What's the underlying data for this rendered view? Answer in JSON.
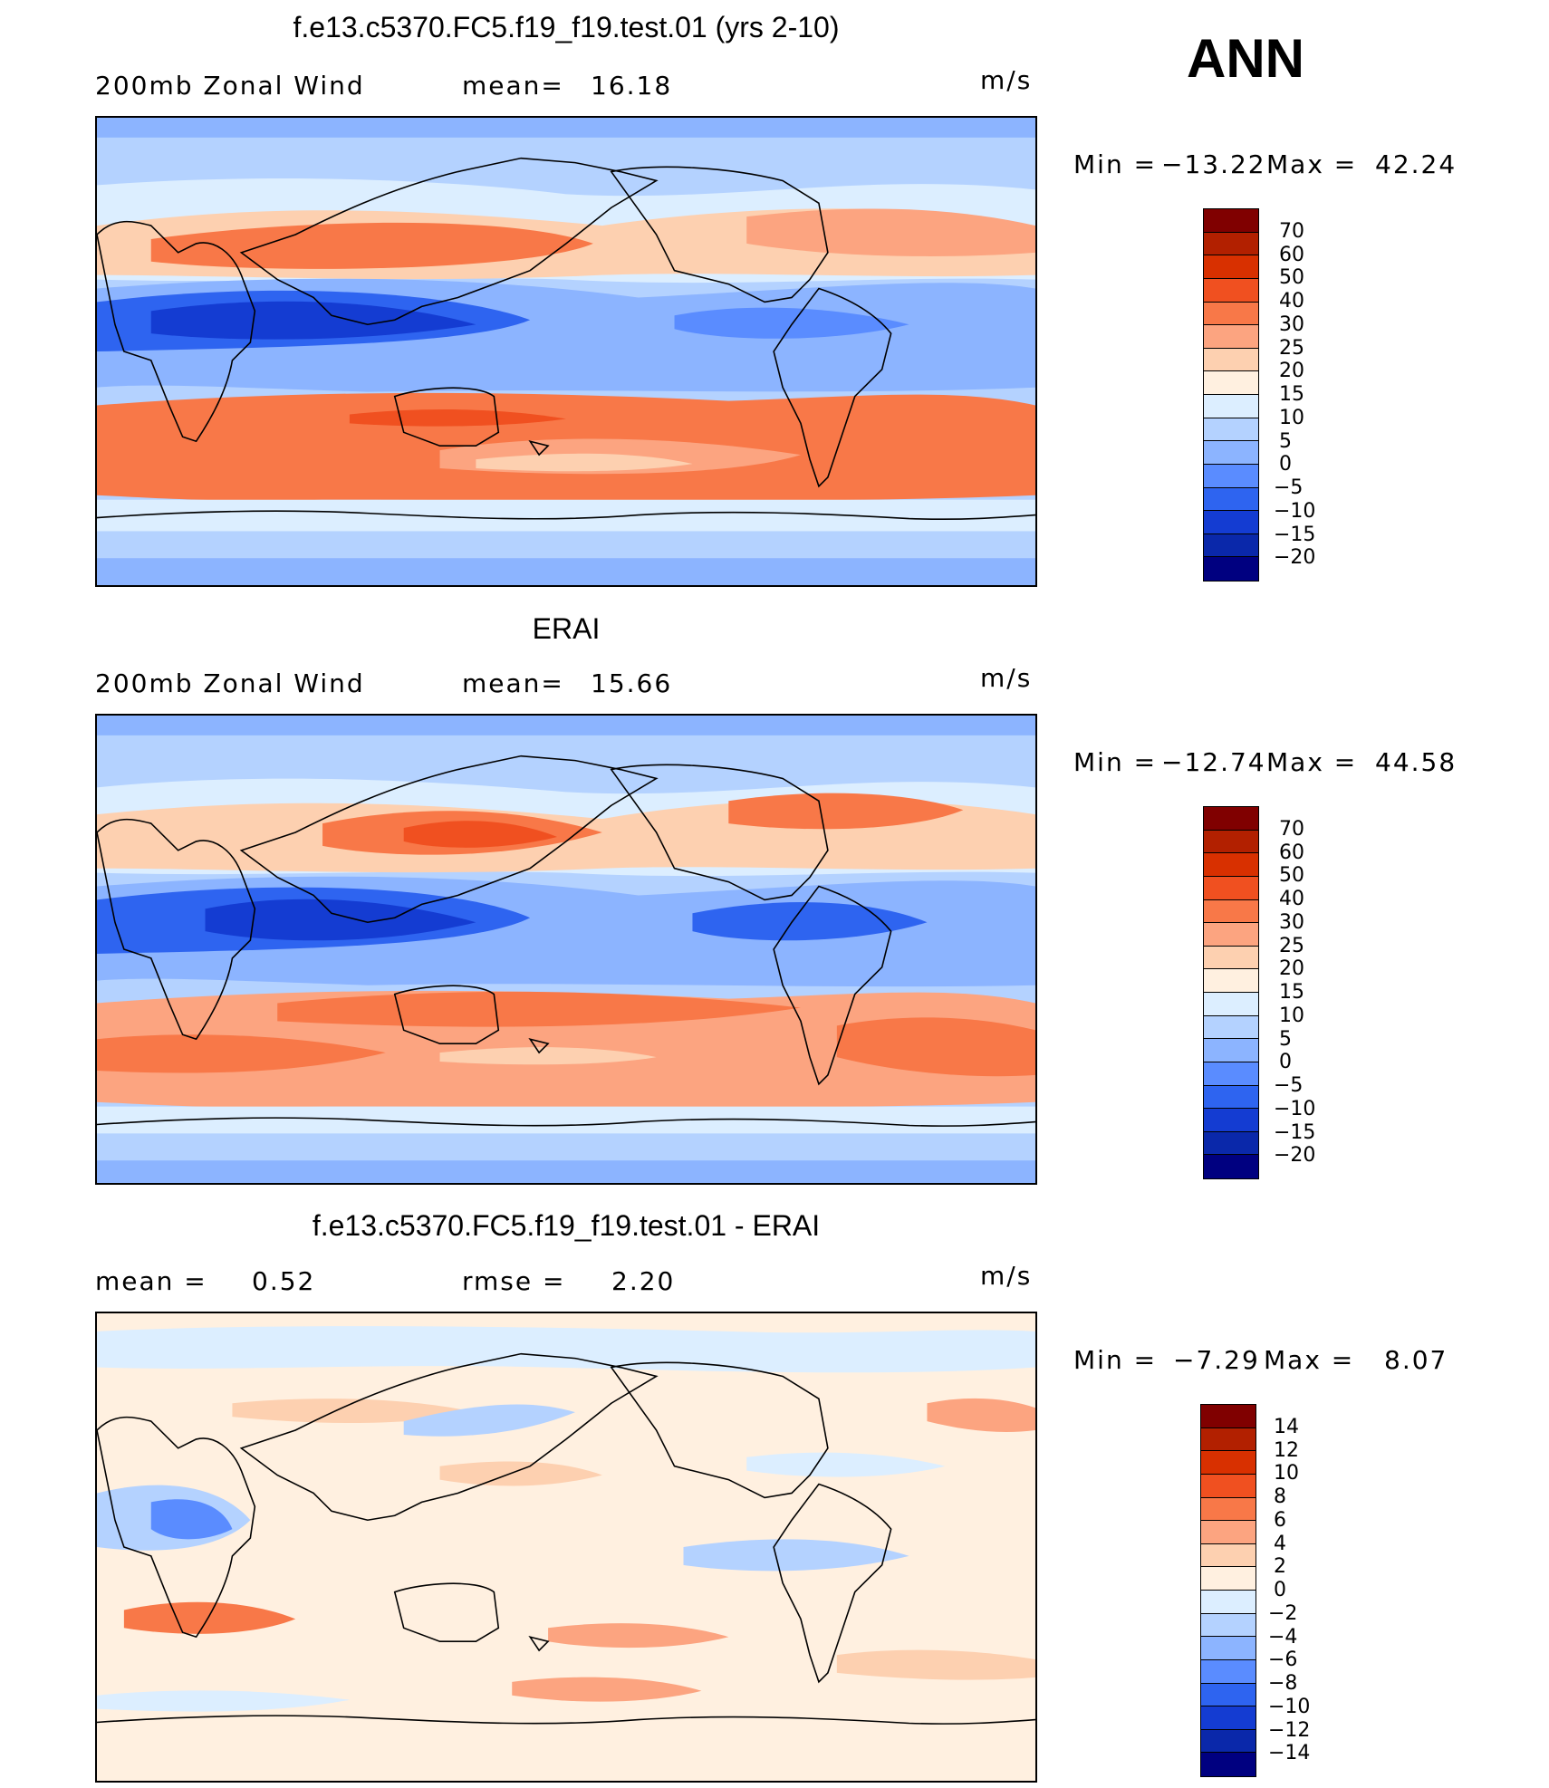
{
  "season": "ANN",
  "panels": [
    {
      "title": "f.e13.c5370.FC5.f19_f19.test.01 (yrs 2-10)",
      "left_label": "200mb Zonal Wind",
      "mid_label": "mean=",
      "mid_value": "16.18",
      "units": "m/s",
      "min_label": "Min =",
      "min_value": "−13.22",
      "max_label": "Max =",
      "max_value": "42.24"
    },
    {
      "title": "ERAI",
      "left_label": "200mb Zonal Wind",
      "mid_label": "mean=",
      "mid_value": "15.66",
      "units": "m/s",
      "min_label": "Min =",
      "min_value": "−12.74",
      "max_label": "Max =",
      "max_value": "44.58"
    },
    {
      "title": "f.e13.c5370.FC5.f19_f19.test.01 - ERAI",
      "left_label": "mean =",
      "left_value": "0.52",
      "mid_label": "rmse =",
      "mid_value": "2.20",
      "units": "m/s",
      "min_label": "Min =",
      "min_value": "−7.29",
      "max_label": "Max =",
      "max_value": "8.07"
    }
  ],
  "colorbars": {
    "field": {
      "labels": [
        "70",
        "60",
        "50",
        "40",
        "30",
        "25",
        "20",
        "15",
        "10",
        "5",
        "0",
        "−5",
        "−10",
        "−15",
        "−20"
      ],
      "colors": [
        "#800000",
        "#b22000",
        "#d83000",
        "#f05020",
        "#f87848",
        "#fca480",
        "#fdd0b0",
        "#fff0e0",
        "#dceeff",
        "#b4d2ff",
        "#8cb4ff",
        "#5a8cff",
        "#2e64f0",
        "#143cd2",
        "#0a28aa",
        "#000080"
      ]
    },
    "diff": {
      "labels": [
        "14",
        "12",
        "10",
        "8",
        "6",
        "4",
        "2",
        "0",
        "−2",
        "−4",
        "−6",
        "−8",
        "−10",
        "−12",
        "−14"
      ],
      "colors": [
        "#800000",
        "#b22000",
        "#d83000",
        "#f05020",
        "#f87848",
        "#fca480",
        "#fdd0b0",
        "#fff0e0",
        "#dceeff",
        "#b4d2ff",
        "#8cb4ff",
        "#5a8cff",
        "#2e64f0",
        "#143cd2",
        "#0a28aa",
        "#000080"
      ]
    }
  }
}
